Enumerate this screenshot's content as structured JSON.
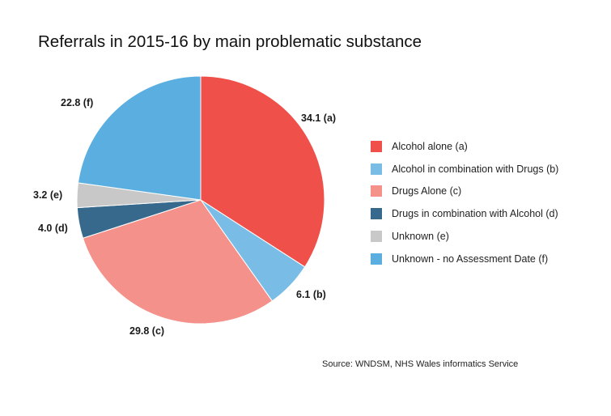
{
  "chart_data": {
    "type": "pie",
    "title": "Referrals in 2015-16 by main problematic substance",
    "slices": [
      {
        "label": "Alcohol alone (a)",
        "short": "a",
        "value": 34.1,
        "data_label": "34.1 (a)",
        "color": "#f0504a"
      },
      {
        "label": "Alcohol in combination with Drugs (b)",
        "short": "b",
        "value": 6.1,
        "data_label": "6.1 (b)",
        "color": "#79bde7"
      },
      {
        "label": "Drugs Alone (c)",
        "short": "c",
        "value": 29.8,
        "data_label": "29.8 (c)",
        "color": "#f4918a"
      },
      {
        "label": "Drugs in combination with Alcohol (d)",
        "short": "d",
        "value": 4.0,
        "data_label": "4.0 (d)",
        "color": "#36698c"
      },
      {
        "label": "Unknown (e)",
        "short": "e",
        "value": 3.2,
        "data_label": "3.2 (e)",
        "color": "#c8c8c8"
      },
      {
        "label": "Unknown - no Assessment Date  (f)",
        "short": "f",
        "value": 22.8,
        "data_label": "22.8 (f)",
        "color": "#5aaee0"
      }
    ],
    "legend_position": "right",
    "source": "Source: WNDSM, NHS Wales informatics Service"
  }
}
